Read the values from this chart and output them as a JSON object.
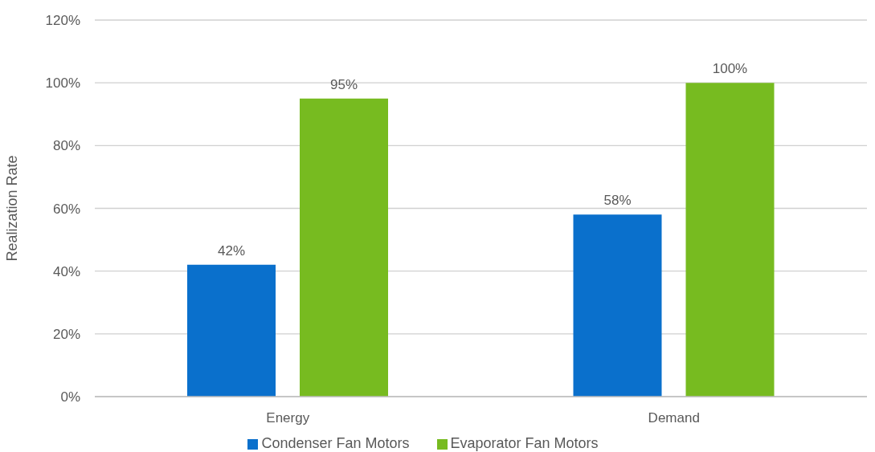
{
  "chart_data": {
    "type": "bar",
    "ylabel": "Realization Rate",
    "categories": [
      "Energy",
      "Demand"
    ],
    "series": [
      {
        "name": "Condenser Fan Motors",
        "color": "#0a70cc",
        "values": [
          42,
          58
        ],
        "value_labels": [
          "42%",
          "58%"
        ]
      },
      {
        "name": "Evaporator Fan Motors",
        "color": "#77bb20",
        "values": [
          95,
          100
        ],
        "value_labels": [
          "95%",
          "100%"
        ]
      }
    ],
    "ylim": [
      0,
      120
    ],
    "yticks": [
      {
        "value": 0,
        "label": "0%"
      },
      {
        "value": 20,
        "label": "20%"
      },
      {
        "value": 40,
        "label": "40%"
      },
      {
        "value": 60,
        "label": "60%"
      },
      {
        "value": 80,
        "label": "80%"
      },
      {
        "value": 100,
        "label": "100%"
      },
      {
        "value": 120,
        "label": "120%"
      }
    ],
    "grid": "y",
    "legend": "bottom"
  }
}
